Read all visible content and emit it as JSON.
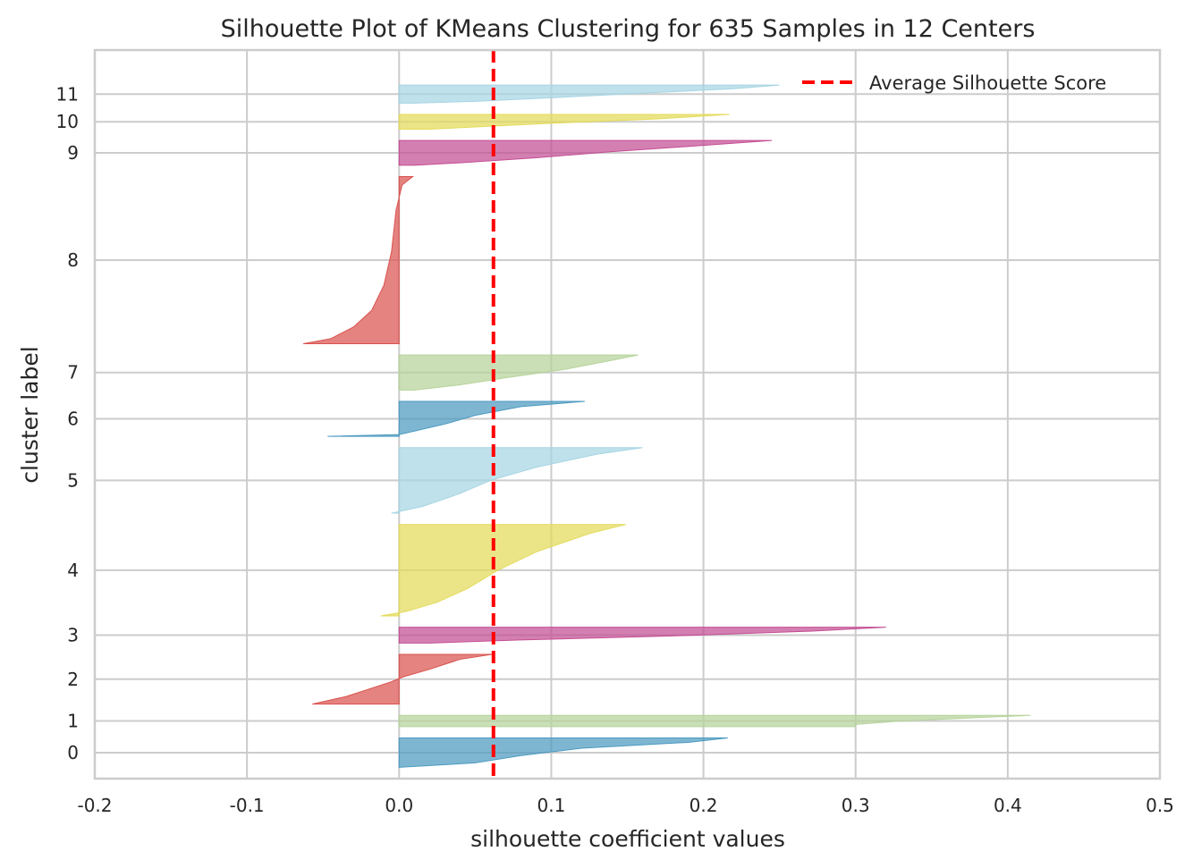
{
  "chart_data": {
    "type": "area",
    "title": "Silhouette Plot of KMeans Clustering for 635 Samples in 12 Centers",
    "xlabel": "silhouette coefficient values",
    "ylabel": "cluster label",
    "xlim": [
      -0.2,
      0.5
    ],
    "ylim": [
      0,
      645
    ],
    "x_ticks": [
      "-0.2",
      "-0.1",
      "0.0",
      "0.1",
      "0.2",
      "0.3",
      "0.4",
      "0.5"
    ],
    "grid": true,
    "legend": {
      "position": "top-right",
      "entries": [
        "Average Silhouette Score"
      ]
    },
    "average_silhouette_score": 0.062,
    "average_line_color": "#ff0000",
    "clusters": [
      {
        "label": "0",
        "start": 10,
        "end": 36,
        "color": "#4c9ac0",
        "min": -0.001,
        "max": 0.216,
        "profile": [
          [
            0,
            0.216
          ],
          [
            0.15,
            0.19
          ],
          [
            0.35,
            0.12
          ],
          [
            0.6,
            0.08
          ],
          [
            0.85,
            0.05
          ],
          [
            1,
            0.0
          ]
        ]
      },
      {
        "label": "1",
        "start": 46,
        "end": 56,
        "color": "#b5d39a",
        "min": 0.0,
        "max": 0.415,
        "profile": [
          [
            0,
            0.415
          ],
          [
            0.2,
            0.38
          ],
          [
            0.5,
            0.33
          ],
          [
            0.8,
            0.3
          ],
          [
            1,
            0.3
          ]
        ]
      },
      {
        "label": "2",
        "start": 66,
        "end": 110,
        "color": "#d9534f",
        "min": -0.057,
        "max": 0.061,
        "profile": [
          [
            0,
            0.061
          ],
          [
            0.1,
            0.04
          ],
          [
            0.3,
            0.02
          ],
          [
            0.45,
            0.003
          ],
          [
            0.55,
            -0.005
          ],
          [
            0.7,
            -0.02
          ],
          [
            0.85,
            -0.035
          ],
          [
            1,
            -0.057
          ]
        ]
      },
      {
        "label": "3",
        "start": 120,
        "end": 134,
        "color": "#c44e93",
        "min": 0.0,
        "max": 0.32,
        "profile": [
          [
            0,
            0.32
          ],
          [
            0.25,
            0.27
          ],
          [
            0.55,
            0.18
          ],
          [
            0.8,
            0.08
          ],
          [
            1,
            0.02
          ]
        ]
      },
      {
        "label": "4",
        "start": 144,
        "end": 225,
        "color": "#e3db5a",
        "min": -0.012,
        "max": 0.149,
        "profile": [
          [
            0,
            0.149
          ],
          [
            0.1,
            0.125
          ],
          [
            0.3,
            0.09
          ],
          [
            0.5,
            0.065
          ],
          [
            0.7,
            0.045
          ],
          [
            0.85,
            0.025
          ],
          [
            0.95,
            0.005
          ],
          [
            1,
            -0.012
          ]
        ]
      },
      {
        "label": "5",
        "start": 235,
        "end": 293,
        "color": "#a6d5e3",
        "min": -0.005,
        "max": 0.16,
        "profile": [
          [
            0,
            0.16
          ],
          [
            0.1,
            0.13
          ],
          [
            0.3,
            0.09
          ],
          [
            0.5,
            0.06
          ],
          [
            0.7,
            0.04
          ],
          [
            0.9,
            0.015
          ],
          [
            1,
            -0.005
          ]
        ]
      },
      {
        "label": "6",
        "start": 303,
        "end": 334,
        "color": "#4c9ac0",
        "min": -0.047,
        "max": 0.122,
        "profile": [
          [
            0,
            0.122
          ],
          [
            0.15,
            0.08
          ],
          [
            0.4,
            0.05
          ],
          [
            0.65,
            0.03
          ],
          [
            0.85,
            0.01
          ],
          [
            0.95,
            0.0
          ],
          [
            1,
            -0.047
          ]
        ]
      },
      {
        "label": "7",
        "start": 344,
        "end": 375,
        "color": "#b5d39a",
        "min": 0.0,
        "max": 0.157,
        "profile": [
          [
            0,
            0.157
          ],
          [
            0.15,
            0.14
          ],
          [
            0.4,
            0.11
          ],
          [
            0.65,
            0.07
          ],
          [
            0.85,
            0.04
          ],
          [
            1,
            0.01
          ]
        ]
      },
      {
        "label": "8",
        "start": 385,
        "end": 533,
        "color": "#d9534f",
        "min": -0.063,
        "max": 0.009,
        "profile": [
          [
            0,
            0.009
          ],
          [
            0.05,
            0.002
          ],
          [
            0.2,
            -0.002
          ],
          [
            0.45,
            -0.005
          ],
          [
            0.65,
            -0.01
          ],
          [
            0.8,
            -0.018
          ],
          [
            0.9,
            -0.03
          ],
          [
            0.97,
            -0.045
          ],
          [
            1,
            -0.063
          ]
        ]
      },
      {
        "label": "9",
        "start": 543,
        "end": 565,
        "color": "#c44e93",
        "min": 0.0,
        "max": 0.245,
        "profile": [
          [
            0,
            0.245
          ],
          [
            0.2,
            0.2
          ],
          [
            0.45,
            0.14
          ],
          [
            0.7,
            0.09
          ],
          [
            0.9,
            0.04
          ],
          [
            1,
            0.01
          ]
        ]
      },
      {
        "label": "10",
        "start": 575,
        "end": 588,
        "color": "#e3db5a",
        "min": 0.0,
        "max": 0.217,
        "profile": [
          [
            0,
            0.217
          ],
          [
            0.3,
            0.17
          ],
          [
            0.6,
            0.1
          ],
          [
            0.85,
            0.05
          ],
          [
            1,
            0.02
          ]
        ]
      },
      {
        "label": "11",
        "start": 598,
        "end": 614,
        "color": "#a6d5e3",
        "min": 0.0,
        "max": 0.25,
        "profile": [
          [
            0,
            0.25
          ],
          [
            0.2,
            0.22
          ],
          [
            0.45,
            0.16
          ],
          [
            0.7,
            0.1
          ],
          [
            0.9,
            0.05
          ],
          [
            1,
            0.01
          ]
        ]
      }
    ]
  }
}
